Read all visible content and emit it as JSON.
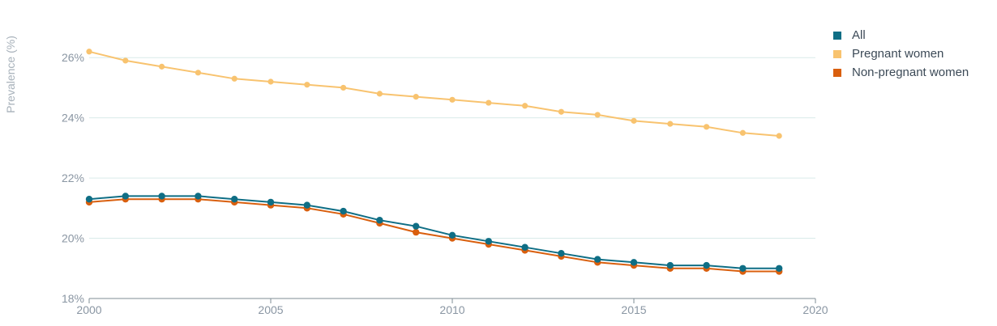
{
  "chart_data": {
    "type": "line",
    "title": "",
    "xlabel": "",
    "ylabel": "Prevalence (%)",
    "xlim": [
      2000,
      2020
    ],
    "ylim": [
      18,
      27
    ],
    "x_ticks": [
      2000,
      2005,
      2010,
      2015,
      2020
    ],
    "y_ticks": [
      18,
      20,
      22,
      24,
      26
    ],
    "y_tick_labels": [
      "18%",
      "20%",
      "22%",
      "24%",
      "26%"
    ],
    "grid": "horizontal",
    "legend_position": "top-right",
    "x": [
      2000,
      2001,
      2002,
      2003,
      2004,
      2005,
      2006,
      2007,
      2008,
      2009,
      2010,
      2011,
      2012,
      2013,
      2014,
      2015,
      2016,
      2017,
      2018,
      2019
    ],
    "series": [
      {
        "name": "All",
        "color": "#0f6e85",
        "values": [
          21.3,
          21.4,
          21.4,
          21.4,
          21.3,
          21.2,
          21.1,
          20.9,
          20.6,
          20.4,
          20.1,
          19.9,
          19.7,
          19.5,
          19.3,
          19.2,
          19.1,
          19.1,
          19.0,
          19.0
        ]
      },
      {
        "name": "Pregnant women",
        "color": "#f8c36f",
        "values": [
          26.2,
          25.9,
          25.7,
          25.5,
          25.3,
          25.2,
          25.1,
          25.0,
          24.8,
          24.7,
          24.6,
          24.5,
          24.4,
          24.2,
          24.1,
          23.9,
          23.8,
          23.7,
          23.5,
          23.4
        ]
      },
      {
        "name": "Non-pregnant women",
        "color": "#d95f0e",
        "values": [
          21.2,
          21.3,
          21.3,
          21.3,
          21.2,
          21.1,
          21.0,
          20.8,
          20.5,
          20.2,
          20.0,
          19.8,
          19.6,
          19.4,
          19.2,
          19.1,
          19.0,
          19.0,
          18.9,
          18.9
        ]
      }
    ]
  }
}
